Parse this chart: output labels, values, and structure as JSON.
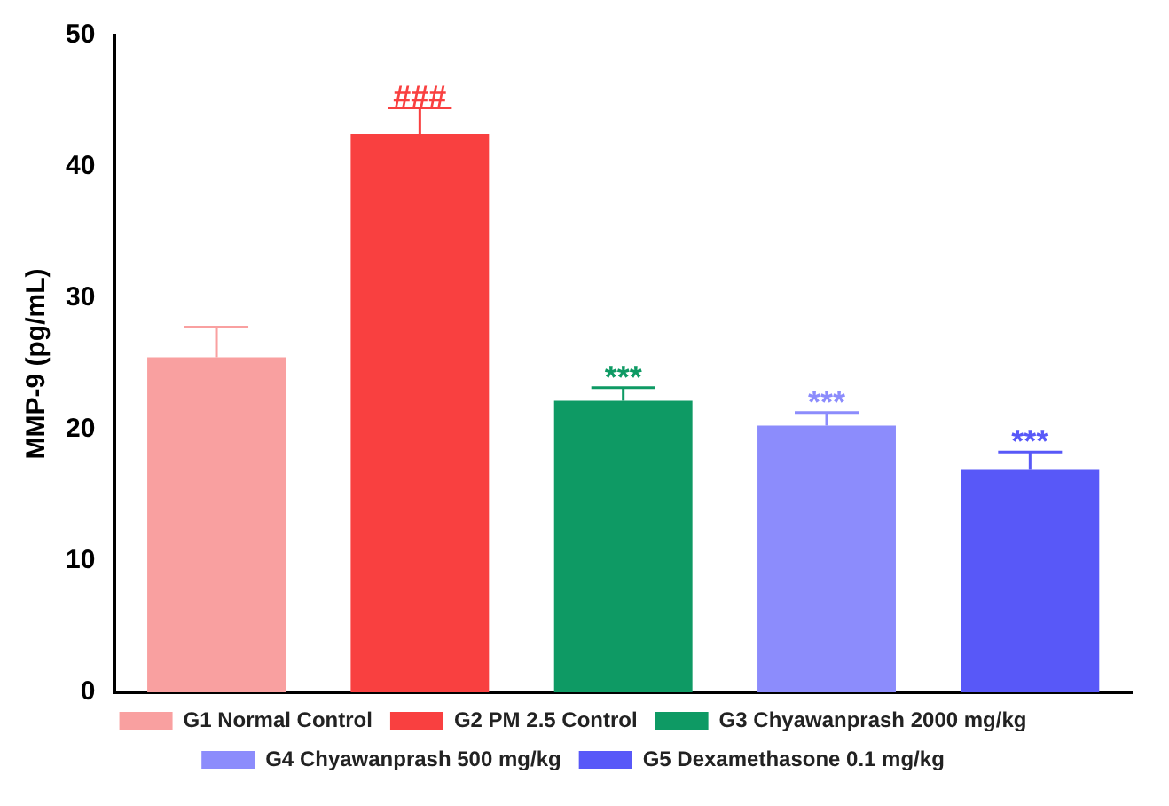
{
  "chart_data": {
    "type": "bar",
    "ylabel": "MMP-9 (pg/mL)",
    "categories": [
      null,
      null,
      null,
      null,
      null
    ],
    "series": [
      {
        "name": "G1 Normal Control",
        "color": "#f9a0a0",
        "values": [
          25.5,
          null,
          null,
          null,
          null
        ],
        "errors": [
          [
            25.5,
            27.8
          ],
          null,
          null,
          null,
          null
        ]
      },
      {
        "name": "G2 PM 2.5 Control",
        "color": "#f94040",
        "values": [
          null,
          42.5,
          null,
          null,
          null
        ],
        "errors": [
          null,
          [
            42.5,
            44.5
          ],
          null,
          null,
          null
        ]
      },
      {
        "name": "G3 Chyawanprash 2000 mg/kg",
        "color": "#0e9a64",
        "values": [
          null,
          null,
          22.2,
          null,
          null
        ],
        "errors": [
          null,
          null,
          [
            22.2,
            23.2
          ],
          null,
          null
        ]
      },
      {
        "name": "G4 Chyawanprash 500 mg/kg",
        "color": "#8c8cfc",
        "values": [
          null,
          null,
          null,
          20.3,
          null
        ],
        "errors": [
          null,
          null,
          null,
          [
            20.3,
            21.3
          ],
          null
        ]
      },
      {
        "name": "G5 Dexamethasone 0.1 mg/kg",
        "color": "#5858f8",
        "values": [
          null,
          null,
          null,
          null,
          17
        ],
        "errors": [
          null,
          null,
          null,
          null,
          [
            17,
            18.3
          ]
        ]
      }
    ],
    "annotations": [
      {
        "text": "###",
        "y": 44.5
      },
      {
        "text": "***",
        "y": 23.2
      },
      {
        "text": "***",
        "y": 21.3
      },
      {
        "text": "***",
        "y": 18.3
      }
    ],
    "ylim": [
      0,
      50
    ],
    "yticks": [
      0,
      10,
      20,
      30,
      40,
      50
    ],
    "grid": false,
    "legend": "bottom",
    "tick_labels": "y"
  }
}
